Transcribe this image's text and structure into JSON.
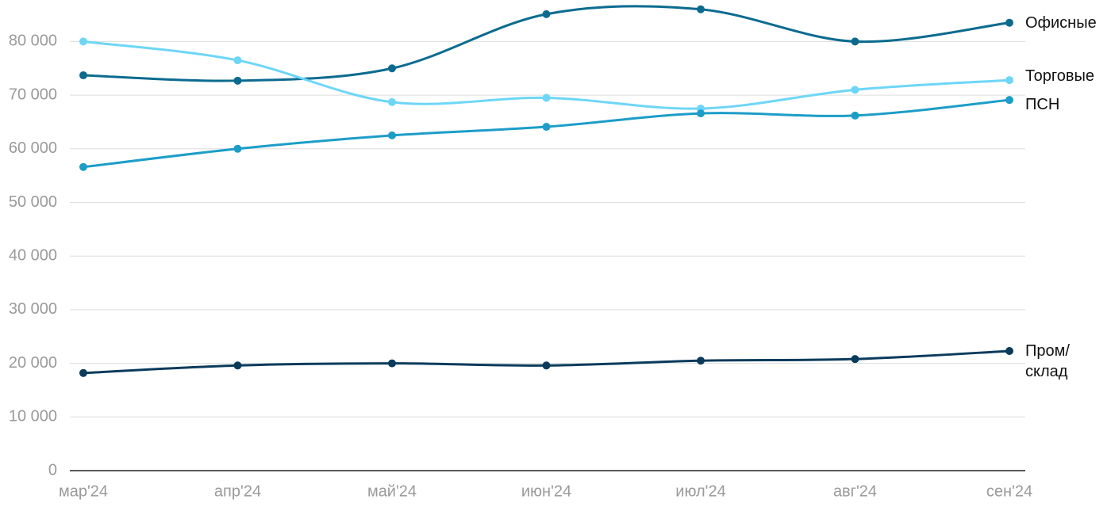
{
  "chart_data": {
    "type": "line",
    "categories": [
      "мар'24",
      "апр'24",
      "май'24",
      "июн'24",
      "июл'24",
      "авг'24",
      "сен'24"
    ],
    "series": [
      {
        "name": "Офисные",
        "color": "#0b6b8f",
        "values": [
          73700,
          72700,
          75000,
          85100,
          86000,
          80000,
          83500
        ]
      },
      {
        "name": "Торговые",
        "color": "#6dd6f7",
        "values": [
          80000,
          76500,
          68700,
          69500,
          67500,
          71000,
          72800
        ]
      },
      {
        "name": "ПСН",
        "color": "#1c9dc8",
        "values": [
          56600,
          60000,
          62500,
          64100,
          66600,
          66200,
          69100
        ]
      },
      {
        "name": "Пром/\nсклад",
        "color": "#0a3b5c",
        "values": [
          18200,
          19600,
          20000,
          19600,
          20500,
          20800,
          22300
        ]
      }
    ],
    "ylim": [
      0,
      87000
    ],
    "yticks": [
      0,
      {
        "value": 10000,
        "label": "10 000"
      },
      {
        "value": 20000,
        "label": "20 000"
      },
      {
        "value": 30000,
        "label": "30 000"
      },
      {
        "value": 40000,
        "label": "40 000"
      },
      {
        "value": 50000,
        "label": "50 000"
      },
      {
        "value": 60000,
        "label": "60 000"
      },
      {
        "value": 70000,
        "label": "70 000"
      },
      {
        "value": 80000,
        "label": "80 000"
      }
    ],
    "grid": true
  }
}
